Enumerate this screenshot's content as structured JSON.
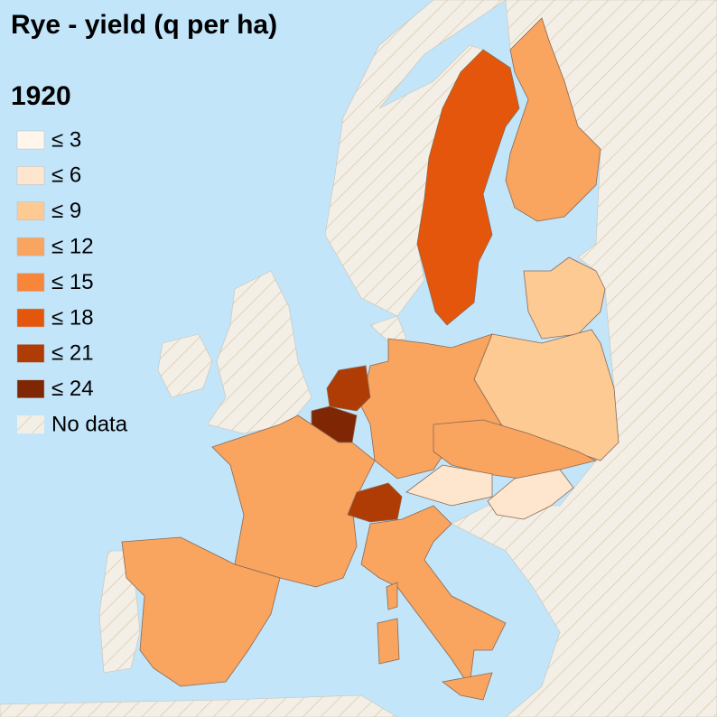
{
  "title": "Rye - yield (q per ha)",
  "year": "1920",
  "legend": [
    {
      "label": "≤ 3",
      "color": "#fff5eb"
    },
    {
      "label": "≤ 6",
      "color": "#fee6ce"
    },
    {
      "label": "≤ 9",
      "color": "#fdca94"
    },
    {
      "label": "≤ 12",
      "color": "#f9a45f"
    },
    {
      "label": "≤ 15",
      "color": "#f8863a"
    },
    {
      "label": "≤ 18",
      "color": "#e4560b"
    },
    {
      "label": "≤ 21",
      "color": "#b03c05"
    },
    {
      "label": "≤ 24",
      "color": "#7f2704"
    }
  ],
  "no_data": {
    "label": "No data",
    "color": "#f3efe6"
  }
}
